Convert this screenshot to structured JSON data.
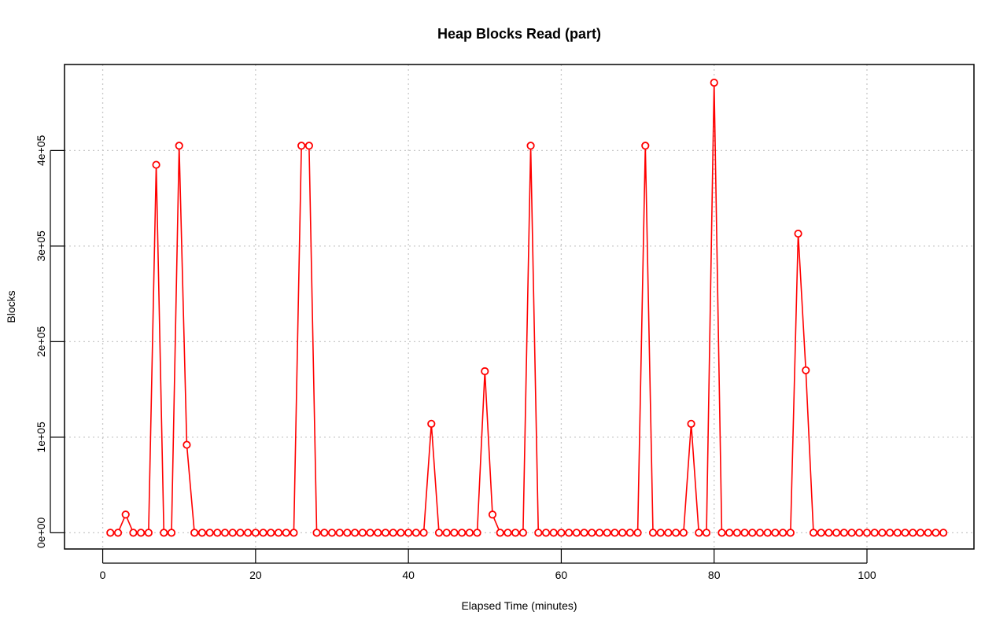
{
  "chart_data": {
    "type": "line",
    "title": "Heap Blocks Read (part)",
    "xlabel": "Elapsed Time (minutes)",
    "ylabel": "Blocks",
    "xlim": [
      -5,
      114
    ],
    "ylim": [
      -17000,
      490000
    ],
    "x_ticks": [
      0,
      20,
      40,
      60,
      80,
      100
    ],
    "x_tick_labels": [
      "0",
      "20",
      "40",
      "60",
      "80",
      "100"
    ],
    "y_ticks": [
      0,
      100000,
      200000,
      300000,
      400000
    ],
    "y_tick_labels": [
      "0e+00",
      "1e+05",
      "2e+05",
      "3e+05",
      "4e+05"
    ],
    "grid": true,
    "color": "#ff0000",
    "series": [
      {
        "x": [
          1,
          2,
          3,
          4,
          5,
          6,
          7,
          8,
          9,
          10,
          11,
          12,
          13,
          14,
          15,
          16,
          17,
          18,
          19,
          20,
          21,
          22,
          23,
          24,
          25,
          26,
          27,
          28,
          29,
          30,
          31,
          32,
          33,
          34,
          35,
          36,
          37,
          38,
          39,
          40,
          41,
          42,
          43,
          44,
          45,
          46,
          47,
          48,
          49,
          50,
          51,
          52,
          53,
          54,
          55,
          56,
          57,
          58,
          59,
          60,
          61,
          62,
          63,
          64,
          65,
          66,
          67,
          68,
          69,
          70,
          71,
          72,
          73,
          74,
          75,
          76,
          77,
          78,
          79,
          80,
          81,
          82,
          83,
          84,
          85,
          86,
          87,
          88,
          89,
          90,
          91,
          92,
          93,
          94,
          95,
          96,
          97,
          98,
          99,
          100,
          101,
          102,
          103,
          104,
          105,
          106,
          107,
          108,
          109,
          110
        ],
        "y": [
          0,
          0,
          19000,
          0,
          0,
          0,
          385000,
          0,
          0,
          405000,
          92000,
          0,
          0,
          0,
          0,
          0,
          0,
          0,
          0,
          0,
          0,
          0,
          0,
          0,
          0,
          405000,
          405000,
          0,
          0,
          0,
          0,
          0,
          0,
          0,
          0,
          0,
          0,
          0,
          0,
          0,
          0,
          0,
          114000,
          0,
          0,
          0,
          0,
          0,
          0,
          169000,
          19000,
          0,
          0,
          0,
          0,
          405000,
          0,
          0,
          0,
          0,
          0,
          0,
          0,
          0,
          0,
          0,
          0,
          0,
          0,
          0,
          405000,
          0,
          0,
          0,
          0,
          0,
          114000,
          0,
          0,
          471000,
          0,
          0,
          0,
          0,
          0,
          0,
          0,
          0,
          0,
          0,
          313000,
          170000,
          0,
          0,
          0,
          0,
          0,
          0,
          0,
          0,
          0,
          0,
          0,
          0,
          0,
          0,
          0,
          0,
          0,
          0
        ]
      }
    ]
  }
}
